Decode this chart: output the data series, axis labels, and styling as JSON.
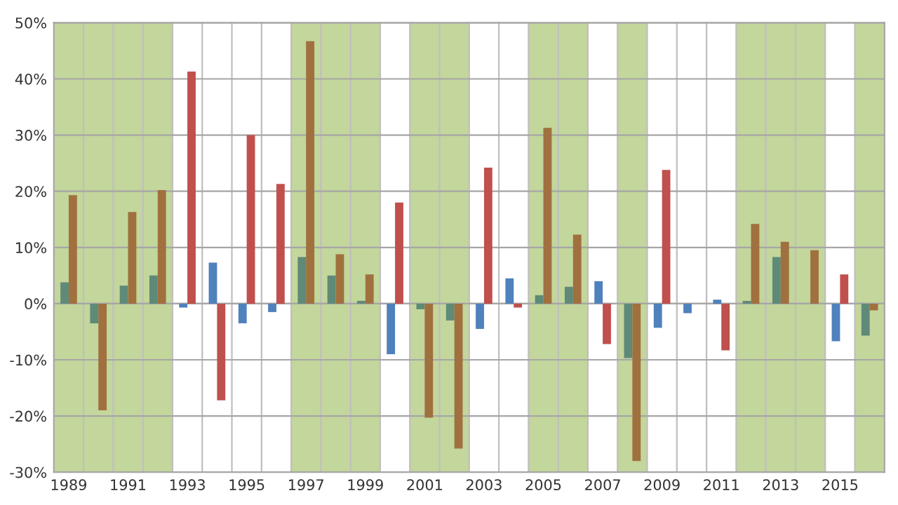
{
  "chart_data": {
    "type": "bar",
    "x": [
      1989,
      1990,
      1991,
      1992,
      1993,
      1994,
      1995,
      1996,
      1997,
      1998,
      1999,
      2000,
      2001,
      2002,
      2003,
      2004,
      2005,
      2006,
      2007,
      2008,
      2009,
      2010,
      2011,
      2012,
      2013,
      2014,
      2015,
      2016
    ],
    "series": [
      {
        "colors": [
          "#5f8a78",
          "#5f8a78",
          "#5f8a78",
          "#5f8a78",
          "#4f81bd",
          "#4f81bd",
          "#4f81bd",
          "#4f81bd",
          "#5f8a78",
          "#5f8a78",
          "#5f8a78",
          "#4f81bd",
          "#5f8a78",
          "#5f8a78",
          "#4f81bd",
          "#4f81bd",
          "#5f8a78",
          "#5f8a78",
          "#4f81bd",
          "#5f8a78",
          "#4f81bd",
          "#4f81bd",
          "#4f81bd",
          "#5f8a78",
          "#5f8a78",
          "#5f8a78",
          "#4f81bd",
          "#5f8a78"
        ],
        "values": [
          3.8,
          -3.5,
          3.2,
          5,
          -0.7,
          7.3,
          -3.5,
          -1.5,
          8.3,
          5,
          0.5,
          -9,
          -1,
          -3,
          -4.5,
          4.5,
          1.5,
          3,
          4,
          -9.7,
          -4.3,
          -1.7,
          0.7,
          0.5,
          8.3,
          null,
          -6.7,
          -5.7
        ]
      },
      {
        "colors": [
          "#a0703f",
          "#a0703f",
          "#a0703f",
          "#a0703f",
          "#c0504d",
          "#c0504d",
          "#c0504d",
          "#c0504d",
          "#a0703f",
          "#a0703f",
          "#a0703f",
          "#c0504d",
          "#a0703f",
          "#a0703f",
          "#c0504d",
          "#c0504d",
          "#a0703f",
          "#a0703f",
          "#c0504d",
          "#a0703f",
          "#c0504d",
          "#c0504d",
          "#c0504d",
          "#a0703f",
          "#a0703f",
          "#a0703f",
          "#c0504d",
          "#a0703f"
        ],
        "values": [
          19.3,
          -19,
          16.3,
          20.2,
          41.3,
          -17.2,
          30,
          21.3,
          46.7,
          8.8,
          5.2,
          18,
          -20.3,
          -25.8,
          24.2,
          -0.7,
          31.3,
          12.3,
          -7.2,
          -28,
          23.8,
          null,
          -8.3,
          14.2,
          11,
          9.5,
          5.2,
          -1.2
        ]
      }
    ],
    "xlim": [
      1988.5,
      2016.5
    ],
    "xticks": [
      1989,
      1991,
      1993,
      1995,
      1997,
      1999,
      2001,
      2003,
      2005,
      2007,
      2009,
      2011,
      2013,
      2015
    ],
    "ylim": [
      -30,
      50
    ],
    "yticks": [
      {
        "value": -30,
        "label": "-30%"
      },
      {
        "value": -20,
        "label": "-20%"
      },
      {
        "value": -10,
        "label": "-10%"
      },
      {
        "value": 0,
        "label": "0%"
      },
      {
        "value": 10,
        "label": "10%"
      },
      {
        "value": 20,
        "label": "20%"
      },
      {
        "value": 30,
        "label": "30%"
      },
      {
        "value": 40,
        "label": "40%"
      },
      {
        "value": 50,
        "label": "50%"
      }
    ],
    "bands": [
      {
        "axis": "x",
        "from": 1988.5,
        "to": 1992.5,
        "color": "#c3d69b"
      },
      {
        "axis": "x",
        "from": 1996.5,
        "to": 1999.5,
        "color": "#c3d69b"
      },
      {
        "axis": "x",
        "from": 2000.5,
        "to": 2002.5,
        "color": "#c3d69b"
      },
      {
        "axis": "x",
        "from": 2004.5,
        "to": 2006.5,
        "color": "#c3d69b"
      },
      {
        "axis": "x",
        "from": 2007.5,
        "to": 2008.5,
        "color": "#c3d69b"
      },
      {
        "axis": "x",
        "from": 2011.5,
        "to": 2014.5,
        "color": "#c3d69b"
      },
      {
        "axis": "x",
        "from": 2015.5,
        "to": 2016.5,
        "color": "#c3d69b"
      }
    ],
    "grid": true
  }
}
